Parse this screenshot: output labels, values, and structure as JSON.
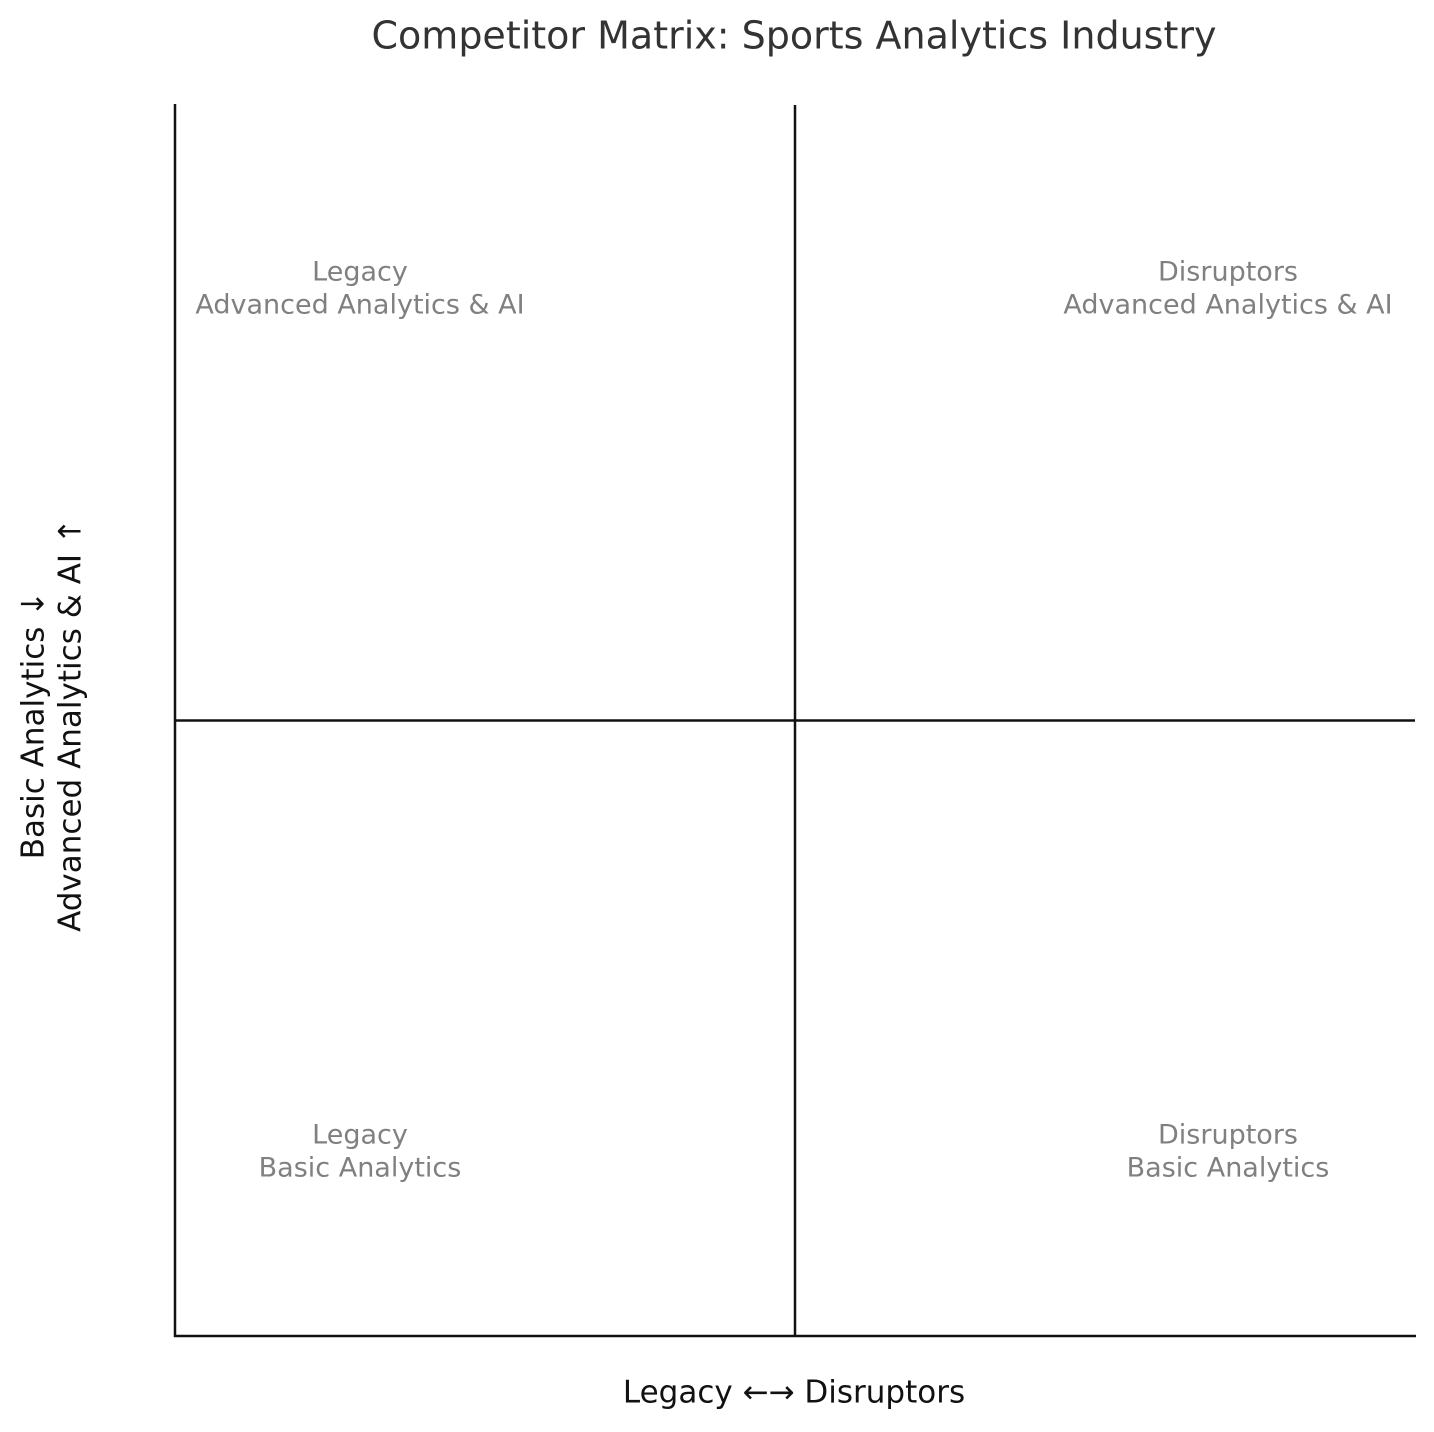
{
  "chart_data": {
    "type": "quadrant",
    "title": "Competitor Matrix: Sports Analytics Industry",
    "x_label": "Legacy ←→ Disruptors",
    "y_label": [
      "Basic Analytics ↓",
      "Advanced Analytics & AI ↑"
    ],
    "quadrants": {
      "top_left": [
        "Legacy",
        "Advanced Analytics & AI"
      ],
      "top_right": [
        "Disruptors",
        "Advanced Analytics & AI"
      ],
      "bottom_left": [
        "Legacy",
        "Basic Analytics"
      ],
      "bottom_right": [
        "Disruptors",
        "Basic Analytics"
      ]
    }
  }
}
